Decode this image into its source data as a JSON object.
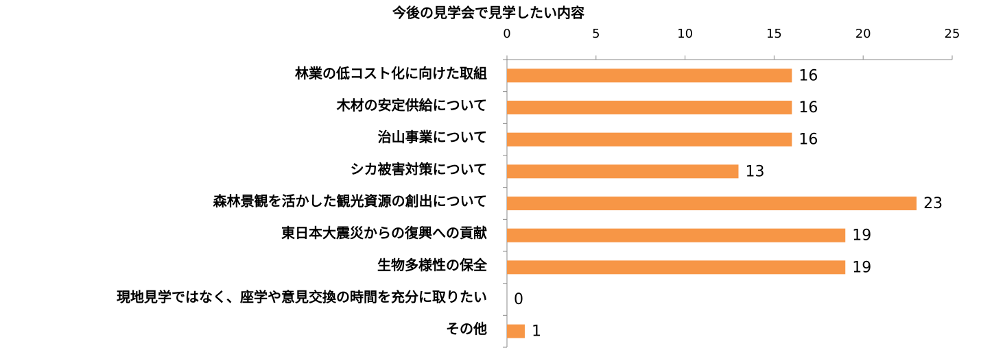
{
  "chart_data": {
    "type": "bar",
    "orientation": "horizontal",
    "title": "今後の見学会で見学したい内容",
    "categories": [
      "林業の低コスト化に向けた取組",
      "木材の安定供給について",
      "治山事業について",
      "シカ被害対策について",
      "森林景観を活かした観光資源の創出について",
      "東日本大震災からの復興への貢献",
      "生物多様性の保全",
      "現地見学ではなく、座学や意見交換の時間を充分に取りたい",
      "その他"
    ],
    "values": [
      16,
      16,
      16,
      13,
      23,
      19,
      19,
      0,
      1
    ],
    "color": "#f79646",
    "xlim": [
      0,
      25
    ],
    "xticks": [
      0,
      5,
      10,
      15,
      20,
      25
    ],
    "grid": false
  }
}
